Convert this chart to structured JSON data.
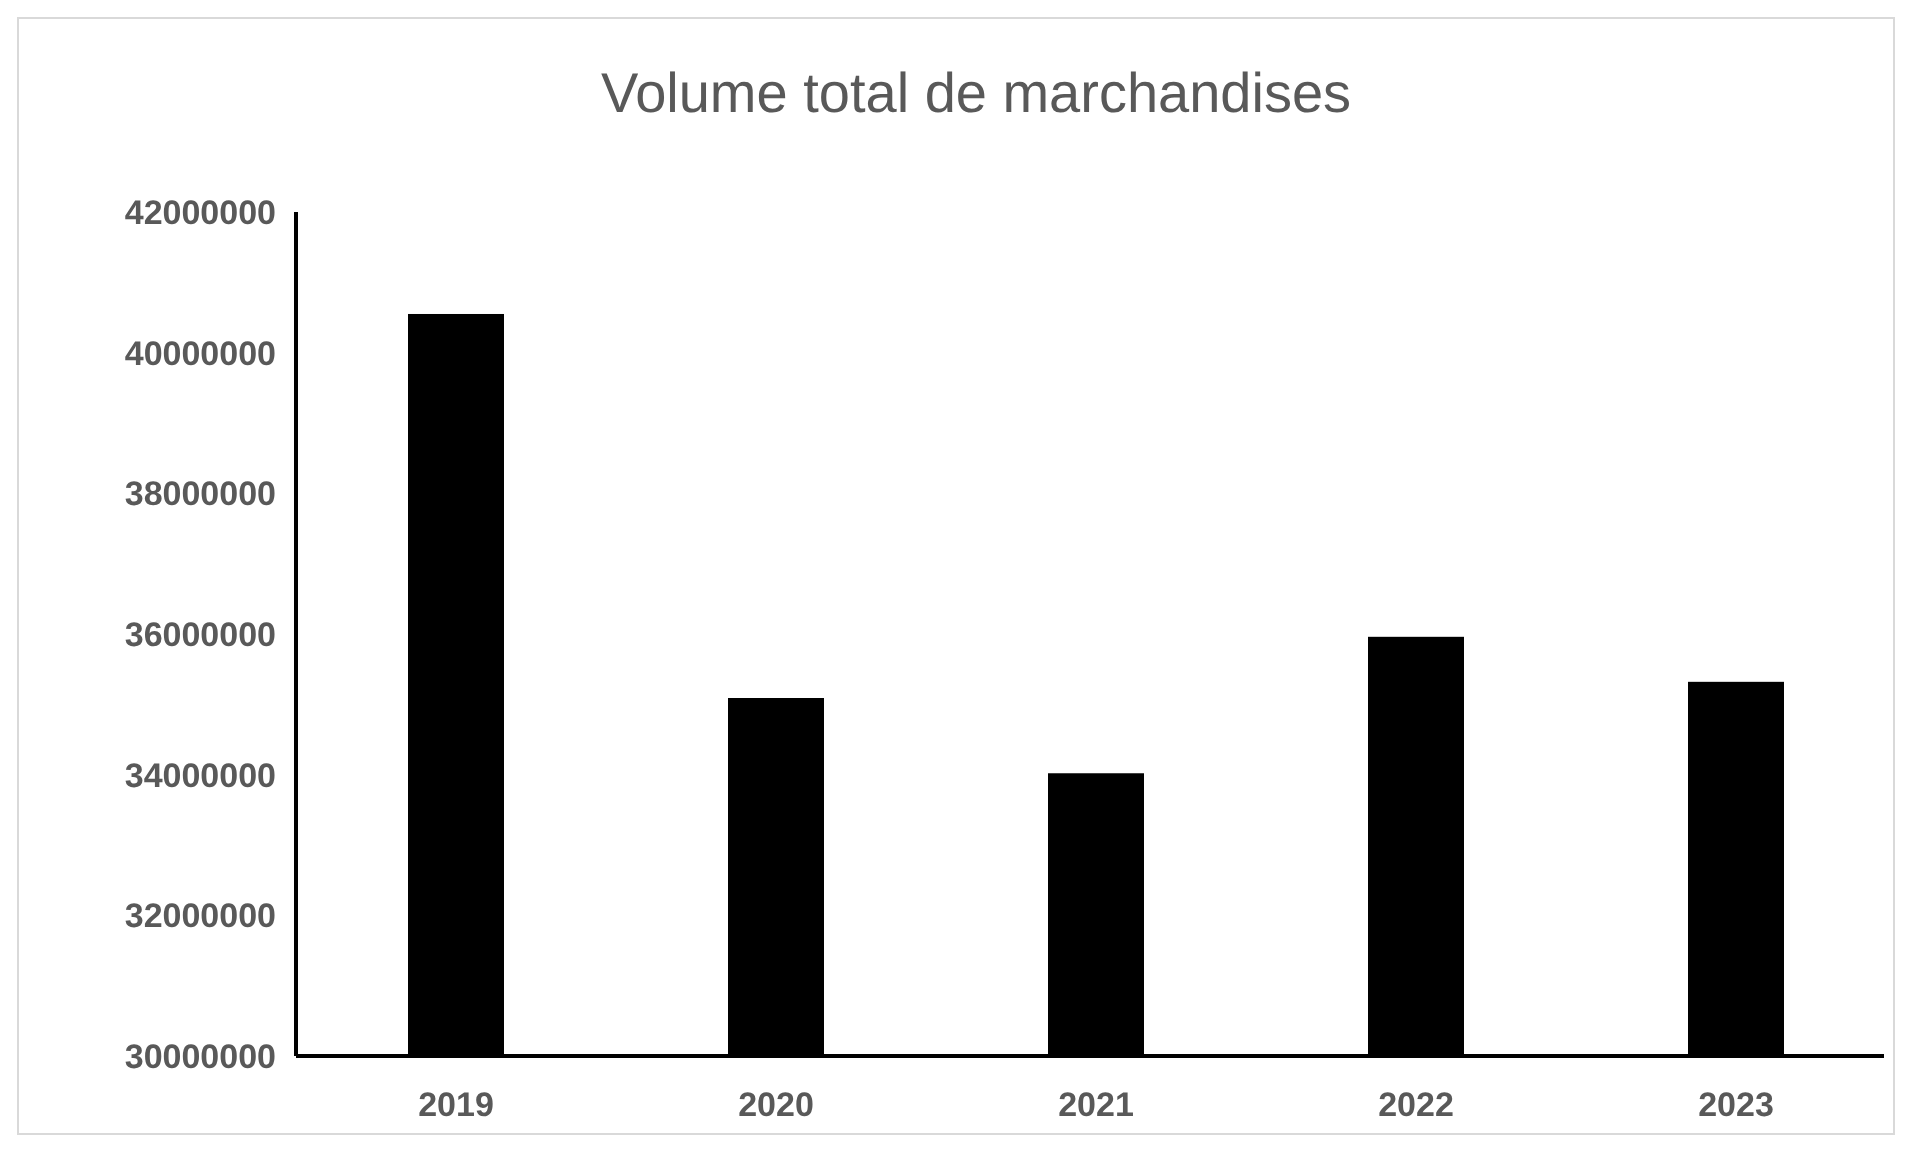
{
  "chart_data": {
    "type": "bar",
    "title": "Volume total de marchandises",
    "categories": [
      "2019",
      "2020",
      "2021",
      "2022",
      "2023"
    ],
    "values": [
      40550000,
      35090000,
      34020000,
      35960000,
      35320000
    ],
    "color": "#000000",
    "ylim": [
      30000000,
      42000000
    ],
    "yticks": [
      30000000,
      32000000,
      34000000,
      36000000,
      38000000,
      40000000,
      42000000
    ],
    "grid": false
  }
}
